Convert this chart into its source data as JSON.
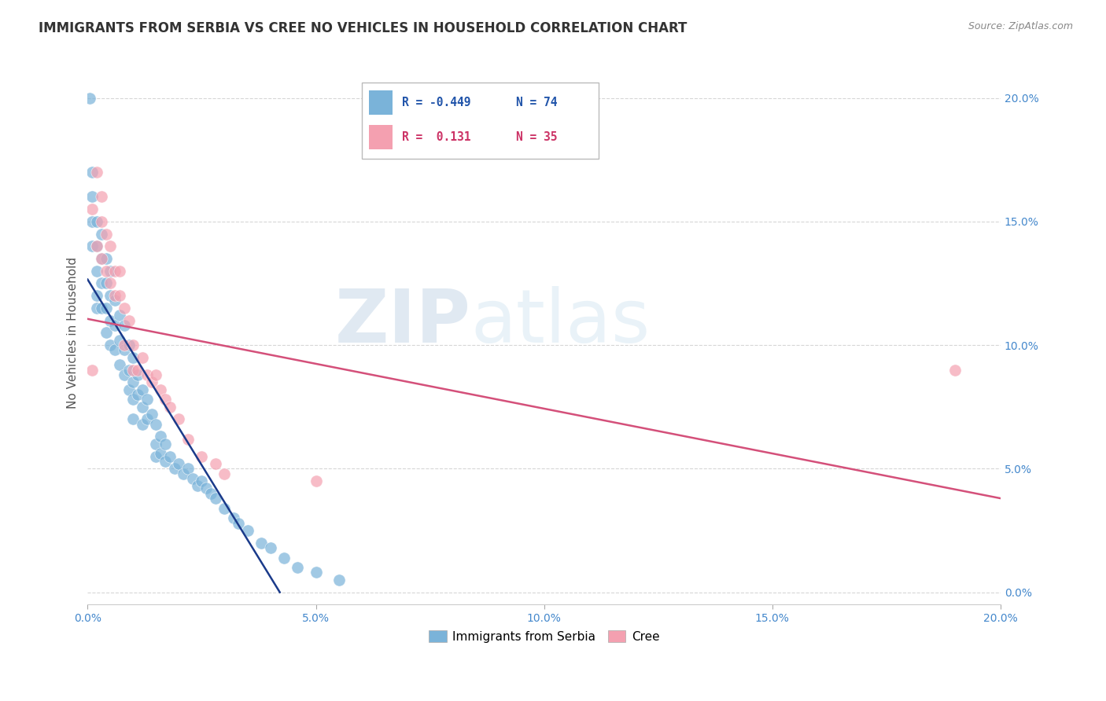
{
  "title": "IMMIGRANTS FROM SERBIA VS CREE NO VEHICLES IN HOUSEHOLD CORRELATION CHART",
  "source": "Source: ZipAtlas.com",
  "ylabel": "No Vehicles in Household",
  "xlim": [
    0.0,
    0.2
  ],
  "ylim": [
    -0.005,
    0.215
  ],
  "serbia_color": "#7ab3d9",
  "cree_color": "#f4a0b0",
  "serbia_line_color": "#1a3a8a",
  "cree_line_color": "#d4507a",
  "watermark_top": "ZIP",
  "watermark_bot": "atlas",
  "serbia_x": [
    0.0005,
    0.001,
    0.001,
    0.001,
    0.001,
    0.002,
    0.002,
    0.002,
    0.002,
    0.002,
    0.003,
    0.003,
    0.003,
    0.003,
    0.004,
    0.004,
    0.004,
    0.004,
    0.005,
    0.005,
    0.005,
    0.005,
    0.006,
    0.006,
    0.006,
    0.007,
    0.007,
    0.007,
    0.008,
    0.008,
    0.008,
    0.009,
    0.009,
    0.009,
    0.01,
    0.01,
    0.01,
    0.01,
    0.011,
    0.011,
    0.012,
    0.012,
    0.012,
    0.013,
    0.013,
    0.014,
    0.015,
    0.015,
    0.015,
    0.016,
    0.016,
    0.017,
    0.017,
    0.018,
    0.019,
    0.02,
    0.021,
    0.022,
    0.023,
    0.024,
    0.025,
    0.026,
    0.027,
    0.028,
    0.03,
    0.032,
    0.033,
    0.035,
    0.038,
    0.04,
    0.043,
    0.046,
    0.05,
    0.055
  ],
  "serbia_y": [
    0.2,
    0.17,
    0.16,
    0.15,
    0.14,
    0.15,
    0.14,
    0.13,
    0.12,
    0.115,
    0.145,
    0.135,
    0.125,
    0.115,
    0.135,
    0.125,
    0.115,
    0.105,
    0.13,
    0.12,
    0.11,
    0.1,
    0.118,
    0.108,
    0.098,
    0.112,
    0.102,
    0.092,
    0.108,
    0.098,
    0.088,
    0.1,
    0.09,
    0.082,
    0.095,
    0.085,
    0.078,
    0.07,
    0.088,
    0.08,
    0.082,
    0.075,
    0.068,
    0.078,
    0.07,
    0.072,
    0.068,
    0.06,
    0.055,
    0.063,
    0.056,
    0.06,
    0.053,
    0.055,
    0.05,
    0.052,
    0.048,
    0.05,
    0.046,
    0.043,
    0.045,
    0.042,
    0.04,
    0.038,
    0.034,
    0.03,
    0.028,
    0.025,
    0.02,
    0.018,
    0.014,
    0.01,
    0.008,
    0.005
  ],
  "cree_x": [
    0.001,
    0.001,
    0.002,
    0.002,
    0.003,
    0.003,
    0.003,
    0.004,
    0.004,
    0.005,
    0.005,
    0.006,
    0.006,
    0.007,
    0.007,
    0.008,
    0.008,
    0.009,
    0.01,
    0.01,
    0.011,
    0.012,
    0.013,
    0.014,
    0.015,
    0.016,
    0.017,
    0.018,
    0.02,
    0.022,
    0.025,
    0.028,
    0.03,
    0.05,
    0.19
  ],
  "cree_y": [
    0.155,
    0.09,
    0.17,
    0.14,
    0.16,
    0.15,
    0.135,
    0.145,
    0.13,
    0.14,
    0.125,
    0.13,
    0.12,
    0.13,
    0.12,
    0.115,
    0.1,
    0.11,
    0.1,
    0.09,
    0.09,
    0.095,
    0.088,
    0.085,
    0.088,
    0.082,
    0.078,
    0.075,
    0.07,
    0.062,
    0.055,
    0.052,
    0.048,
    0.045,
    0.09
  ]
}
